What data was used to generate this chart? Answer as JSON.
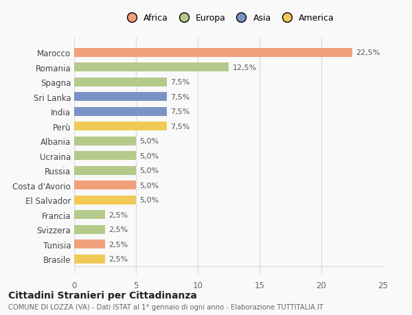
{
  "countries": [
    "Brasile",
    "Tunisia",
    "Svizzera",
    "Francia",
    "El Salvador",
    "Costa d'Avorio",
    "Russia",
    "Ucraina",
    "Albania",
    "Perù",
    "India",
    "Sri Lanka",
    "Spagna",
    "Romania",
    "Marocco"
  ],
  "values": [
    2.5,
    2.5,
    2.5,
    2.5,
    5.0,
    5.0,
    5.0,
    5.0,
    5.0,
    7.5,
    7.5,
    7.5,
    7.5,
    12.5,
    22.5
  ],
  "colors": [
    "#f0c957",
    "#f0a07a",
    "#b5c98a",
    "#b5c98a",
    "#f0c957",
    "#f0a07a",
    "#b5c98a",
    "#b5c98a",
    "#b5c98a",
    "#f0c957",
    "#7b93c4",
    "#7b93c4",
    "#b5c98a",
    "#b5c98a",
    "#f0a07a"
  ],
  "labels": [
    "2,5%",
    "2,5%",
    "2,5%",
    "2,5%",
    "5,0%",
    "5,0%",
    "5,0%",
    "5,0%",
    "5,0%",
    "7,5%",
    "7,5%",
    "7,5%",
    "7,5%",
    "12,5%",
    "22,5%"
  ],
  "legend": [
    {
      "label": "Africa",
      "color": "#f0a07a"
    },
    {
      "label": "Europa",
      "color": "#b5c98a"
    },
    {
      "label": "Asia",
      "color": "#7b93c4"
    },
    {
      "label": "America",
      "color": "#f0c957"
    }
  ],
  "xlim": [
    0,
    25
  ],
  "xticks": [
    0,
    5,
    10,
    15,
    20,
    25
  ],
  "title": "Cittadini Stranieri per Cittadinanza",
  "subtitle": "COMUNE DI LOZZA (VA) - Dati ISTAT al 1° gennaio di ogni anno - Elaborazione TUTTITALIA.IT",
  "background_color": "#f9f9f9",
  "grid_color": "#dddddd",
  "bar_height": 0.6
}
